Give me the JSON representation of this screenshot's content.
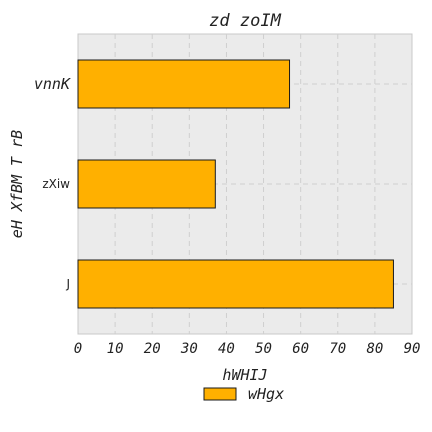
{
  "chart_data": {
    "type": "bar",
    "orientation": "horizontal",
    "title": "zd zoIM",
    "xlabel": "hWHIJ",
    "ylabel": "eH XfBM T rB",
    "categories": [
      "vnnK",
      "zXiw",
      "J"
    ],
    "series": [
      {
        "name": "wHgx",
        "values": [
          57,
          37,
          85
        ]
      }
    ],
    "xlim": [
      0,
      90
    ],
    "xticks": [
      0,
      10,
      20,
      30,
      40,
      50,
      60,
      70,
      80,
      90
    ],
    "grid": true,
    "legend_position": "bottom-center",
    "colors": {
      "bar": "#ffb000",
      "bar_edge": "#1a1a1a",
      "plot_bg": "#ebebeb",
      "grid": "#cfcfcf"
    }
  }
}
